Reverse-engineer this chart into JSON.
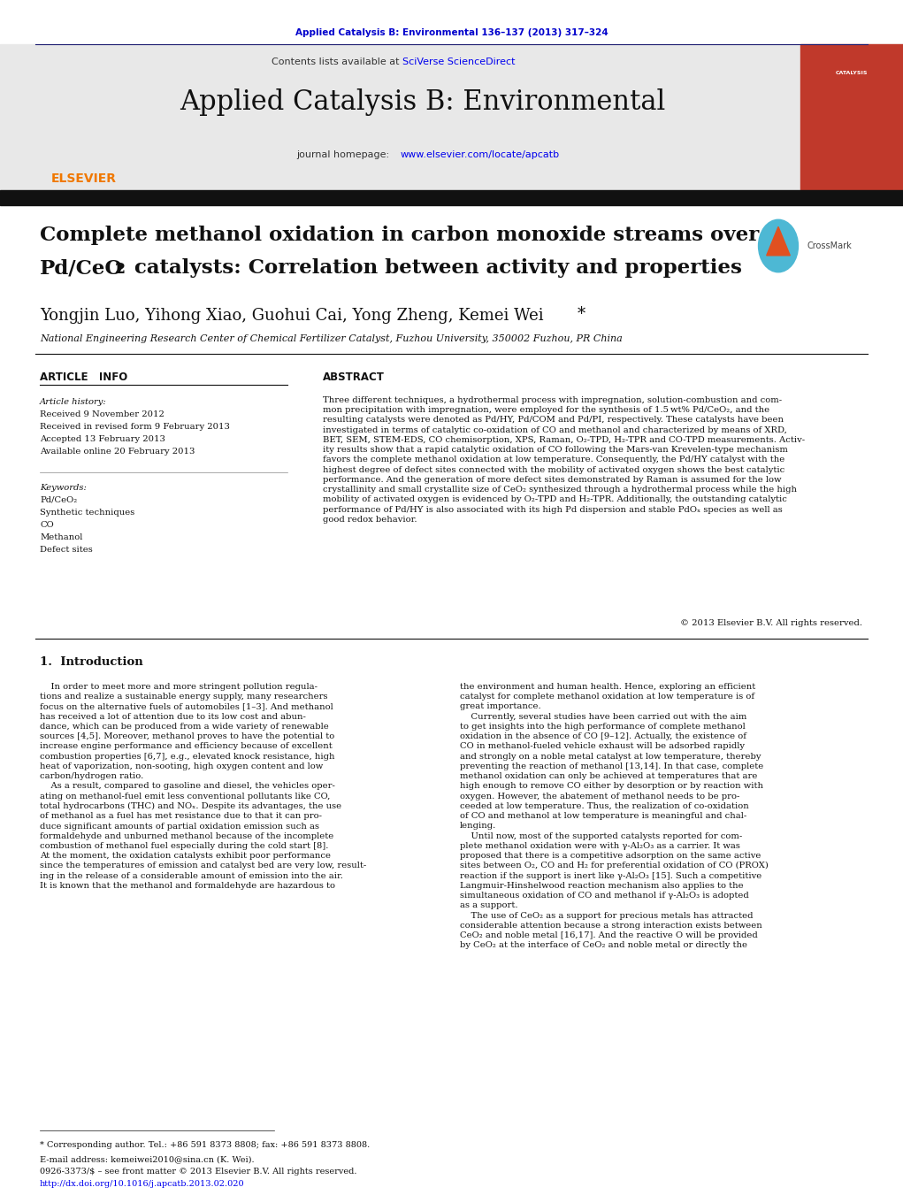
{
  "page_width": 10.21,
  "page_height": 13.51,
  "bg_color": "#ffffff",
  "journal_ref_text": "Applied Catalysis B: Environmental 136–137 (2013) 317–324",
  "journal_ref_color": "#0000cc",
  "journal_ref_fontsize": 7.5,
  "contents_text": "Contents lists available at ",
  "sciverse_text": "SciVerse ScienceDirect",
  "journal_link_text": "www.elsevier.com/locate/apcatb",
  "journal_name": "Applied Catalysis B: Environmental",
  "journal_name_fontsize": 22,
  "header_bg_color": "#e8e8e8",
  "elsevier_color": "#f07800",
  "title_line1": "Complete methanol oxidation in carbon monoxide streams over",
  "title_line2": "Pd/CeO",
  "title_line2b": "2",
  "title_line2c": " catalysts: Correlation between activity and properties",
  "title_fontsize": 16.5,
  "authors": "Yongjin Luo, Yihong Xiao, Guohui Cai, Yong Zheng, Kemei Wei",
  "authors_fontsize": 13,
  "affiliation": "National Engineering Research Center of Chemical Fertilizer Catalyst, Fuzhou University, 350002 Fuzhou, PR China",
  "affiliation_fontsize": 8,
  "article_info_header": "ARTICLE   INFO",
  "abstract_header": "ABSTRACT",
  "section_header_fontsize": 8.5,
  "article_history_label": "Article history:",
  "received_text": "Received 9 November 2012",
  "revised_text": "Received in revised form 9 February 2013",
  "accepted_text": "Accepted 13 February 2013",
  "available_text": "Available online 20 February 2013",
  "keywords_label": "Keywords:",
  "kw1": "Pd/CeO₂",
  "kw2": "Synthetic techniques",
  "kw3": "CO",
  "kw4": "Methanol",
  "kw5": "Defect sites",
  "abstract_text": "Three different techniques, a hydrothermal process with impregnation, solution-combustion and com-\nmon precipitation with impregnation, were employed for the synthesis of 1.5 wt% Pd/CeO₂, and the\nresulting catalysts were denoted as Pd/HY, Pd/COM and Pd/PI, respectively. These catalysts have been\ninvestigated in terms of catalytic co-oxidation of CO and methanol and characterized by means of XRD,\nBET, SEM, STEM-EDS, CO chemisorption, XPS, Raman, O₂-TPD, H₂-TPR and CO-TPD measurements. Activ-\nity results show that a rapid catalytic oxidation of CO following the Mars-van Krevelen-type mechanism\nfavors the complete methanol oxidation at low temperature. Consequently, the Pd/HY catalyst with the\nhighest degree of defect sites connected with the mobility of activated oxygen shows the best catalytic\nperformance. And the generation of more defect sites demonstrated by Raman is assumed for the low\ncrystallinity and small crystallite size of CeO₂ synthesized through a hydrothermal process while the high\nmobility of activated oxygen is evidenced by O₂-TPD and H₂-TPR. Additionally, the outstanding catalytic\nperformance of Pd/HY is also associated with its high Pd dispersion and stable PdOₓ species as well as\ngood redox behavior.",
  "copyright_text": "© 2013 Elsevier B.V. All rights reserved.",
  "intro_header": "1.  Introduction",
  "intro_col1": "    In order to meet more and more stringent pollution regula-\ntions and realize a sustainable energy supply, many researchers\nfocus on the alternative fuels of automobiles [1–3]. And methanol\nhas received a lot of attention due to its low cost and abun-\ndance, which can be produced from a wide variety of renewable\nsources [4,5]. Moreover, methanol proves to have the potential to\nincrease engine performance and efficiency because of excellent\ncombustion properties [6,7], e.g., elevated knock resistance, high\nheat of vaporization, non-sooting, high oxygen content and low\ncarbon/hydrogen ratio.\n    As a result, compared to gasoline and diesel, the vehicles oper-\nating on methanol-fuel emit less conventional pollutants like CO,\ntotal hydrocarbons (THC) and NOₓ. Despite its advantages, the use\nof methanol as a fuel has met resistance due to that it can pro-\nduce significant amounts of partial oxidation emission such as\nformaldehyde and unburned methanol because of the incomplete\ncombustion of methanol fuel especially during the cold start [8].\nAt the moment, the oxidation catalysts exhibit poor performance\nsince the temperatures of emission and catalyst bed are very low, result-\ning in the release of a considerable amount of emission into the air.\nIt is known that the methanol and formaldehyde are hazardous to",
  "intro_col2": "the environment and human health. Hence, exploring an efficient\ncatalyst for complete methanol oxidation at low temperature is of\ngreat importance.\n    Currently, several studies have been carried out with the aim\nto get insights into the high performance of complete methanol\noxidation in the absence of CO [9–12]. Actually, the existence of\nCO in methanol-fueled vehicle exhaust will be adsorbed rapidly\nand strongly on a noble metal catalyst at low temperature, thereby\npreventing the reaction of methanol [13,14]. In that case, complete\nmethanol oxidation can only be achieved at temperatures that are\nhigh enough to remove CO either by desorption or by reaction with\noxygen. However, the abatement of methanol needs to be pro-\nceeded at low temperature. Thus, the realization of co-oxidation\nof CO and methanol at low temperature is meaningful and chal-\nlenging.\n    Until now, most of the supported catalysts reported for com-\nplete methanol oxidation were with γ-Al₂O₃ as a carrier. It was\nproposed that there is a competitive adsorption on the same active\nsites between O₂, CO and H₂ for preferential oxidation of CO (PROX)\nreaction if the support is inert like γ-Al₂O₃ [15]. Such a competitive\nLangmuir-Hinshelwood reaction mechanism also applies to the\nsimultaneous oxidation of CO and methanol if γ-Al₂O₃ is adopted\nas a support.\n    The use of CeO₂ as a support for precious metals has attracted\nconsiderable attention because a strong interaction exists between\nCeO₂ and noble metal [16,17]. And the reactive O will be provided\nby CeO₂ at the interface of CeO₂ and noble metal or directly the",
  "footnote_star": "* Corresponding author. Tel.: +86 591 8373 8808; fax: +86 591 8373 8808.",
  "footnote_email": "E-mail address: kemeiwei2010@sina.cn (K. Wei).",
  "footnote_issn": "0926-3373/$ – see front matter © 2013 Elsevier B.V. All rights reserved.",
  "footnote_doi": "http://dx.doi.org/10.1016/j.apcatb.2013.02.020",
  "link_color": "#0000ee"
}
